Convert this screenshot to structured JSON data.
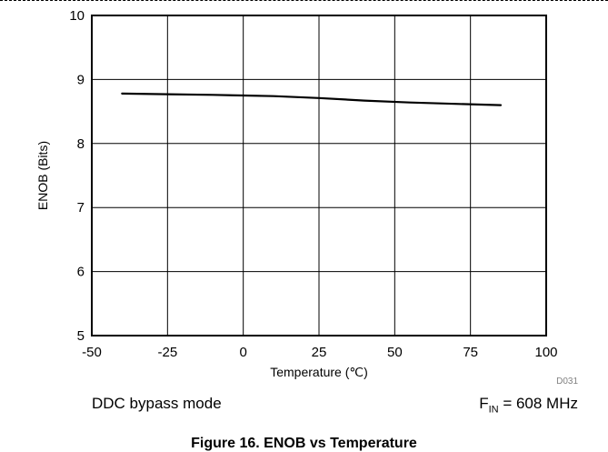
{
  "chart_data": {
    "type": "line",
    "title": "",
    "xlabel": "Temperature (℃)",
    "ylabel": "ENOB (Bits)",
    "xlim": [
      -50,
      100
    ],
    "ylim": [
      5,
      10
    ],
    "xticks": [
      -50,
      -25,
      0,
      25,
      50,
      75,
      100
    ],
    "yticks": [
      5,
      6,
      7,
      8,
      9,
      10
    ],
    "grid": true,
    "chart_code": "D031",
    "series": [
      {
        "x": [
          -40,
          -25,
          -10,
          0,
          10,
          25,
          40,
          55,
          70,
          85
        ],
        "y": [
          8.78,
          8.77,
          8.76,
          8.75,
          8.74,
          8.71,
          8.67,
          8.64,
          8.62,
          8.6
        ],
        "color": "#000000"
      }
    ]
  },
  "notes": {
    "mode": "DDC bypass mode",
    "fin_prefix": "F",
    "fin_sub": "IN",
    "fin_value": " = 608 MHz"
  },
  "caption": "Figure 16. ENOB vs Temperature"
}
